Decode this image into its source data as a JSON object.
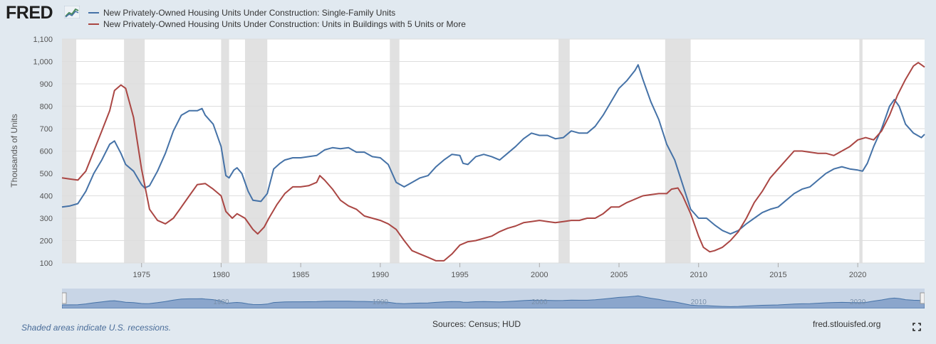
{
  "header": {
    "logo_text": "FRED",
    "logo_icon": "trend-line-icon"
  },
  "footer": {
    "recession_note": "Shaded areas indicate U.S. recessions.",
    "sources": "Sources: Census; HUD",
    "site": "fred.stlouisfed.org",
    "fullscreen_icon": "fullscreen-icon"
  },
  "colors": {
    "single_family": "#4572a7",
    "multi_family": "#aa4643",
    "recession": "#e1e1e1",
    "background": "#e1e9f0",
    "navigator_fill": "#8ba6cc"
  },
  "chart_data": {
    "type": "line",
    "ylabel": "Thousands of Units",
    "xlim": [
      1970,
      2024.2
    ],
    "ylim": [
      100,
      1100
    ],
    "yticks": [
      100,
      200,
      300,
      400,
      500,
      600,
      700,
      800,
      900,
      1000,
      1100
    ],
    "ytick_labels": [
      "100",
      "200",
      "300",
      "400",
      "500",
      "600",
      "700",
      "800",
      "900",
      "1,000",
      "1,100"
    ],
    "xticks": [
      1975,
      1980,
      1985,
      1990,
      1995,
      2000,
      2005,
      2010,
      2015,
      2020
    ],
    "xtick_labels": [
      "1975",
      "1980",
      "1985",
      "1990",
      "1995",
      "2000",
      "2005",
      "2010",
      "2015",
      "2020"
    ],
    "navigator_labels": [
      "1980",
      "1990",
      "2000",
      "2010",
      "2020"
    ],
    "recessions": [
      [
        1970.0,
        1970.9
      ],
      [
        1973.9,
        1975.2
      ],
      [
        1980.0,
        1980.5
      ],
      [
        1981.5,
        1982.9
      ],
      [
        1990.6,
        1991.2
      ],
      [
        2001.2,
        2001.9
      ],
      [
        2007.9,
        2009.5
      ],
      [
        2020.1,
        2020.3
      ]
    ],
    "series": [
      {
        "name": "New Privately-Owned Housing Units Under Construction: Single-Family Units",
        "color": "#4572a7",
        "x": [
          1970.0,
          1970.5,
          1971.0,
          1971.5,
          1972.0,
          1972.5,
          1973.0,
          1973.3,
          1973.7,
          1974.0,
          1974.5,
          1975.0,
          1975.2,
          1975.5,
          1976.0,
          1976.5,
          1977.0,
          1977.5,
          1978.0,
          1978.5,
          1978.8,
          1979.0,
          1979.5,
          1980.0,
          1980.3,
          1980.5,
          1980.8,
          1981.0,
          1981.3,
          1981.7,
          1982.0,
          1982.5,
          1982.9,
          1983.3,
          1983.7,
          1984.0,
          1984.5,
          1985.0,
          1985.5,
          1986.0,
          1986.5,
          1987.0,
          1987.5,
          1988.0,
          1988.5,
          1989.0,
          1989.5,
          1990.0,
          1990.5,
          1991.0,
          1991.5,
          1992.0,
          1992.5,
          1993.0,
          1993.5,
          1994.0,
          1994.5,
          1995.0,
          1995.2,
          1995.5,
          1996.0,
          1996.5,
          1997.0,
          1997.5,
          1998.0,
          1998.5,
          1999.0,
          1999.5,
          2000.0,
          2000.5,
          2001.0,
          2001.5,
          2002.0,
          2002.5,
          2003.0,
          2003.5,
          2004.0,
          2004.5,
          2005.0,
          2005.5,
          2006.0,
          2006.2,
          2006.5,
          2007.0,
          2007.5,
          2008.0,
          2008.5,
          2009.0,
          2009.5,
          2010.0,
          2010.5,
          2011.0,
          2011.5,
          2012.0,
          2012.5,
          2013.0,
          2013.5,
          2014.0,
          2014.5,
          2015.0,
          2015.5,
          2016.0,
          2016.5,
          2017.0,
          2017.5,
          2018.0,
          2018.5,
          2019.0,
          2019.5,
          2020.0,
          2020.3,
          2020.6,
          2021.0,
          2021.5,
          2022.0,
          2022.3,
          2022.6,
          2023.0,
          2023.5,
          2024.0,
          2024.2
        ],
        "values": [
          350,
          355,
          365,
          420,
          500,
          560,
          630,
          645,
          590,
          540,
          510,
          450,
          435,
          445,
          510,
          590,
          690,
          760,
          780,
          780,
          790,
          760,
          720,
          620,
          490,
          480,
          515,
          525,
          500,
          420,
          380,
          375,
          410,
          520,
          545,
          560,
          570,
          570,
          575,
          580,
          605,
          615,
          610,
          615,
          595,
          595,
          575,
          570,
          540,
          460,
          440,
          460,
          480,
          490,
          530,
          560,
          585,
          580,
          545,
          540,
          575,
          585,
          575,
          560,
          590,
          620,
          655,
          680,
          670,
          670,
          655,
          660,
          690,
          680,
          680,
          710,
          760,
          820,
          880,
          915,
          960,
          985,
          920,
          820,
          740,
          630,
          560,
          450,
          340,
          300,
          300,
          270,
          245,
          230,
          245,
          275,
          300,
          325,
          340,
          350,
          380,
          410,
          430,
          440,
          470,
          500,
          520,
          530,
          520,
          515,
          510,
          545,
          620,
          700,
          800,
          830,
          800,
          720,
          680,
          660,
          675
        ]
      },
      {
        "name": "New Privately-Owned Housing Units Under Construction: Units in Buildings with 5 Units or More",
        "color": "#aa4643",
        "x": [
          1970.0,
          1970.5,
          1971.0,
          1971.5,
          1972.0,
          1972.5,
          1973.0,
          1973.3,
          1973.7,
          1974.0,
          1974.5,
          1975.0,
          1975.5,
          1976.0,
          1976.5,
          1977.0,
          1977.5,
          1978.0,
          1978.5,
          1979.0,
          1979.5,
          1980.0,
          1980.3,
          1980.7,
          1981.0,
          1981.5,
          1982.0,
          1982.3,
          1982.7,
          1983.0,
          1983.5,
          1984.0,
          1984.5,
          1985.0,
          1985.5,
          1986.0,
          1986.2,
          1986.5,
          1987.0,
          1987.5,
          1988.0,
          1988.5,
          1989.0,
          1989.5,
          1990.0,
          1990.5,
          1991.0,
          1991.5,
          1992.0,
          1992.5,
          1993.0,
          1993.5,
          1994.0,
          1994.5,
          1995.0,
          1995.5,
          1996.0,
          1996.5,
          1997.0,
          1997.5,
          1998.0,
          1998.5,
          1999.0,
          1999.5,
          2000.0,
          2000.5,
          2001.0,
          2001.5,
          2002.0,
          2002.5,
          2003.0,
          2003.5,
          2004.0,
          2004.5,
          2005.0,
          2005.5,
          2006.0,
          2006.5,
          2007.0,
          2007.5,
          2008.0,
          2008.3,
          2008.7,
          2009.0,
          2009.5,
          2010.0,
          2010.3,
          2010.7,
          2011.0,
          2011.5,
          2012.0,
          2012.5,
          2013.0,
          2013.5,
          2014.0,
          2014.5,
          2015.0,
          2015.5,
          2016.0,
          2016.5,
          2017.0,
          2017.5,
          2018.0,
          2018.5,
          2019.0,
          2019.5,
          2020.0,
          2020.5,
          2021.0,
          2021.5,
          2022.0,
          2022.5,
          2023.0,
          2023.5,
          2023.8,
          2024.0,
          2024.2
        ],
        "values": [
          480,
          475,
          470,
          510,
          600,
          690,
          780,
          870,
          895,
          880,
          750,
          520,
          340,
          290,
          275,
          300,
          350,
          400,
          450,
          455,
          430,
          400,
          330,
          300,
          320,
          300,
          250,
          230,
          260,
          300,
          360,
          410,
          440,
          440,
          445,
          460,
          490,
          470,
          430,
          380,
          355,
          340,
          310,
          300,
          290,
          275,
          250,
          200,
          155,
          140,
          125,
          110,
          110,
          140,
          180,
          195,
          200,
          210,
          220,
          240,
          255,
          265,
          280,
          285,
          290,
          285,
          280,
          285,
          290,
          290,
          300,
          300,
          320,
          350,
          350,
          370,
          385,
          400,
          405,
          410,
          410,
          430,
          435,
          400,
          320,
          220,
          170,
          150,
          155,
          170,
          200,
          240,
          300,
          370,
          420,
          480,
          520,
          560,
          600,
          600,
          595,
          590,
          590,
          580,
          600,
          620,
          650,
          660,
          650,
          690,
          760,
          850,
          920,
          980,
          995,
          985,
          975
        ]
      }
    ]
  }
}
